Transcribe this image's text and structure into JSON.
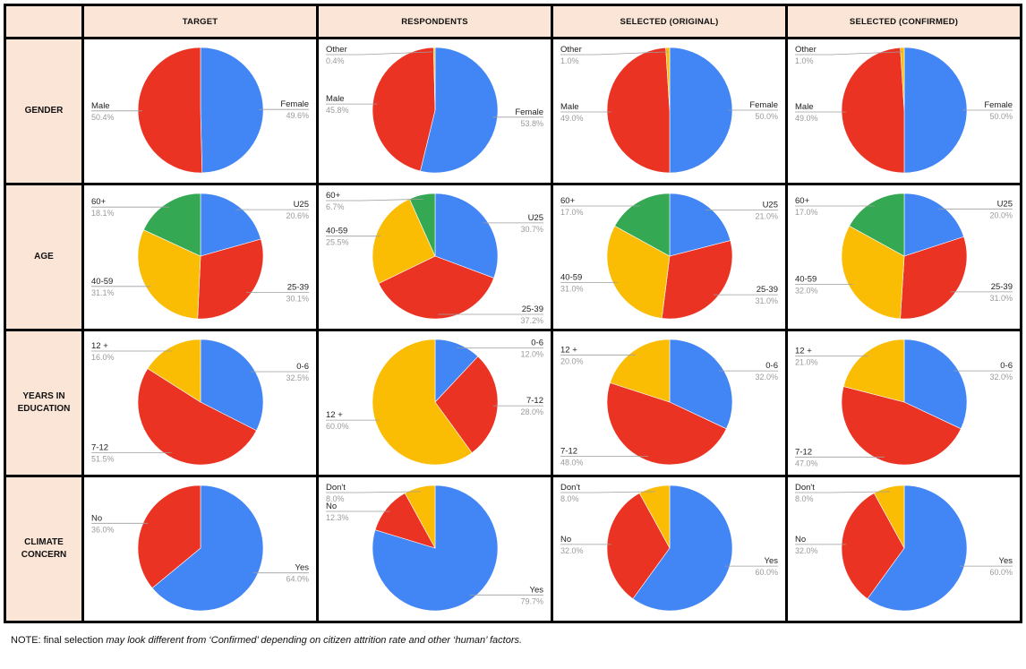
{
  "columns": [
    "TARGET",
    "RESPONDENTS",
    "SELECTED (ORIGINAL)",
    "SELECTED (CONFIRMED)"
  ],
  "rows": [
    "GENDER",
    "AGE",
    "YEARS IN\nEDUCATION",
    "CLIMATE\nCONCERN"
  ],
  "colors": {
    "blue": "#4285f4",
    "red": "#ea3323",
    "yellow": "#fbbc04",
    "green": "#34a853",
    "header_bg": "#fbe5d6",
    "grid_line": "#000000"
  },
  "note": {
    "prefix": "NOTE: final selection ",
    "italic": "may look different from ‘Confirmed’ depending on citizen attrition rate and other ‘human’ factors.",
    "suffix": ""
  },
  "chart_data": [
    {
      "type": "pie",
      "row": "GENDER",
      "column": "TARGET",
      "slices": [
        {
          "label": "Female",
          "value": 49.6,
          "value_text": "49.6%",
          "color": "#4285f4"
        },
        {
          "label": "Male",
          "value": 50.4,
          "value_text": "50.4%",
          "color": "#ea3323"
        }
      ]
    },
    {
      "type": "pie",
      "row": "GENDER",
      "column": "RESPONDENTS",
      "slices": [
        {
          "label": "Female",
          "value": 53.8,
          "value_text": "53.8%",
          "color": "#4285f4"
        },
        {
          "label": "Male",
          "value": 45.8,
          "value_text": "45.8%",
          "color": "#ea3323"
        },
        {
          "label": "Other",
          "value": 0.4,
          "value_text": "0.4%",
          "color": "#fbbc04"
        }
      ]
    },
    {
      "type": "pie",
      "row": "GENDER",
      "column": "SELECTED (ORIGINAL)",
      "slices": [
        {
          "label": "Female",
          "value": 50.0,
          "value_text": "50.0%",
          "color": "#4285f4"
        },
        {
          "label": "Male",
          "value": 49.0,
          "value_text": "49.0%",
          "color": "#ea3323"
        },
        {
          "label": "Other",
          "value": 1.0,
          "value_text": "1.0%",
          "color": "#fbbc04"
        }
      ]
    },
    {
      "type": "pie",
      "row": "GENDER",
      "column": "SELECTED (CONFIRMED)",
      "slices": [
        {
          "label": "Female",
          "value": 50.0,
          "value_text": "50.0%",
          "color": "#4285f4"
        },
        {
          "label": "Male",
          "value": 49.0,
          "value_text": "49.0%",
          "color": "#ea3323"
        },
        {
          "label": "Other",
          "value": 1.0,
          "value_text": "1.0%",
          "color": "#fbbc04"
        }
      ]
    },
    {
      "type": "pie",
      "row": "AGE",
      "column": "TARGET",
      "slices": [
        {
          "label": "U25",
          "value": 20.6,
          "value_text": "20.6%",
          "color": "#4285f4"
        },
        {
          "label": "25-39",
          "value": 30.1,
          "value_text": "30.1%",
          "color": "#ea3323"
        },
        {
          "label": "40-59",
          "value": 31.1,
          "value_text": "31.1%",
          "color": "#fbbc04"
        },
        {
          "label": "60+",
          "value": 18.1,
          "value_text": "18.1%",
          "color": "#34a853"
        }
      ]
    },
    {
      "type": "pie",
      "row": "AGE",
      "column": "RESPONDENTS",
      "slices": [
        {
          "label": "U25",
          "value": 30.7,
          "value_text": "30.7%",
          "color": "#4285f4"
        },
        {
          "label": "25-39",
          "value": 37.2,
          "value_text": "37.2%",
          "color": "#ea3323"
        },
        {
          "label": "40-59",
          "value": 25.5,
          "value_text": "25.5%",
          "color": "#fbbc04"
        },
        {
          "label": "60+",
          "value": 6.7,
          "value_text": "6.7%",
          "color": "#34a853"
        }
      ]
    },
    {
      "type": "pie",
      "row": "AGE",
      "column": "SELECTED (ORIGINAL)",
      "slices": [
        {
          "label": "U25",
          "value": 21.0,
          "value_text": "21.0%",
          "color": "#4285f4"
        },
        {
          "label": "25-39",
          "value": 31.0,
          "value_text": "31.0%",
          "color": "#ea3323"
        },
        {
          "label": "40-59",
          "value": 31.0,
          "value_text": "31.0%",
          "color": "#fbbc04"
        },
        {
          "label": "60+",
          "value": 17.0,
          "value_text": "17.0%",
          "color": "#34a853"
        }
      ]
    },
    {
      "type": "pie",
      "row": "AGE",
      "column": "SELECTED (CONFIRMED)",
      "slices": [
        {
          "label": "U25",
          "value": 20.0,
          "value_text": "20.0%",
          "color": "#4285f4"
        },
        {
          "label": "25-39",
          "value": 31.0,
          "value_text": "31.0%",
          "color": "#ea3323"
        },
        {
          "label": "40-59",
          "value": 32.0,
          "value_text": "32.0%",
          "color": "#fbbc04"
        },
        {
          "label": "60+",
          "value": 17.0,
          "value_text": "17.0%",
          "color": "#34a853"
        }
      ]
    },
    {
      "type": "pie",
      "row": "YEARS IN EDUCATION",
      "column": "TARGET",
      "slices": [
        {
          "label": "0-6",
          "value": 32.5,
          "value_text": "32.5%",
          "color": "#4285f4"
        },
        {
          "label": "7-12",
          "value": 51.5,
          "value_text": "51.5%",
          "color": "#ea3323"
        },
        {
          "label": "12 +",
          "value": 16.0,
          "value_text": "16.0%",
          "color": "#fbbc04"
        }
      ]
    },
    {
      "type": "pie",
      "row": "YEARS IN EDUCATION",
      "column": "RESPONDENTS",
      "slices": [
        {
          "label": "0-6",
          "value": 12.0,
          "value_text": "12.0%",
          "color": "#4285f4"
        },
        {
          "label": "7-12",
          "value": 28.0,
          "value_text": "28.0%",
          "color": "#ea3323"
        },
        {
          "label": "12 +",
          "value": 60.0,
          "value_text": "60.0%",
          "color": "#fbbc04"
        }
      ]
    },
    {
      "type": "pie",
      "row": "YEARS IN EDUCATION",
      "column": "SELECTED (ORIGINAL)",
      "slices": [
        {
          "label": "0-6",
          "value": 32.0,
          "value_text": "32.0%",
          "color": "#4285f4"
        },
        {
          "label": "7-12",
          "value": 48.0,
          "value_text": "48.0%",
          "color": "#ea3323"
        },
        {
          "label": "12 +",
          "value": 20.0,
          "value_text": "20.0%",
          "color": "#fbbc04"
        }
      ]
    },
    {
      "type": "pie",
      "row": "YEARS IN EDUCATION",
      "column": "SELECTED (CONFIRMED)",
      "slices": [
        {
          "label": "0-6",
          "value": 32.0,
          "value_text": "32.0%",
          "color": "#4285f4"
        },
        {
          "label": "7-12",
          "value": 47.0,
          "value_text": "47.0%",
          "color": "#ea3323"
        },
        {
          "label": "12 +",
          "value": 21.0,
          "value_text": "21.0%",
          "color": "#fbbc04"
        }
      ]
    },
    {
      "type": "pie",
      "row": "CLIMATE CONCERN",
      "column": "TARGET",
      "slices": [
        {
          "label": "Yes",
          "value": 64.0,
          "value_text": "64.0%",
          "color": "#4285f4"
        },
        {
          "label": "No",
          "value": 36.0,
          "value_text": "36.0%",
          "color": "#ea3323"
        }
      ]
    },
    {
      "type": "pie",
      "row": "CLIMATE CONCERN",
      "column": "RESPONDENTS",
      "slices": [
        {
          "label": "Yes",
          "value": 79.7,
          "value_text": "79.7%",
          "color": "#4285f4"
        },
        {
          "label": "No",
          "value": 12.3,
          "value_text": "12.3%",
          "color": "#ea3323"
        },
        {
          "label": "Don't",
          "value": 8.0,
          "value_text": "8.0%",
          "color": "#fbbc04"
        }
      ]
    },
    {
      "type": "pie",
      "row": "CLIMATE CONCERN",
      "column": "SELECTED (ORIGINAL)",
      "slices": [
        {
          "label": "Yes",
          "value": 60.0,
          "value_text": "60.0%",
          "color": "#4285f4"
        },
        {
          "label": "No",
          "value": 32.0,
          "value_text": "32.0%",
          "color": "#ea3323"
        },
        {
          "label": "Don't",
          "value": 8.0,
          "value_text": "8.0%",
          "color": "#fbbc04"
        }
      ]
    },
    {
      "type": "pie",
      "row": "CLIMATE CONCERN",
      "column": "SELECTED (CONFIRMED)",
      "slices": [
        {
          "label": "Yes",
          "value": 60.0,
          "value_text": "60.0%",
          "color": "#4285f4"
        },
        {
          "label": "No",
          "value": 32.0,
          "value_text": "32.0%",
          "color": "#ea3323"
        },
        {
          "label": "Don't",
          "value": 8.0,
          "value_text": "8.0%",
          "color": "#fbbc04"
        }
      ]
    }
  ]
}
